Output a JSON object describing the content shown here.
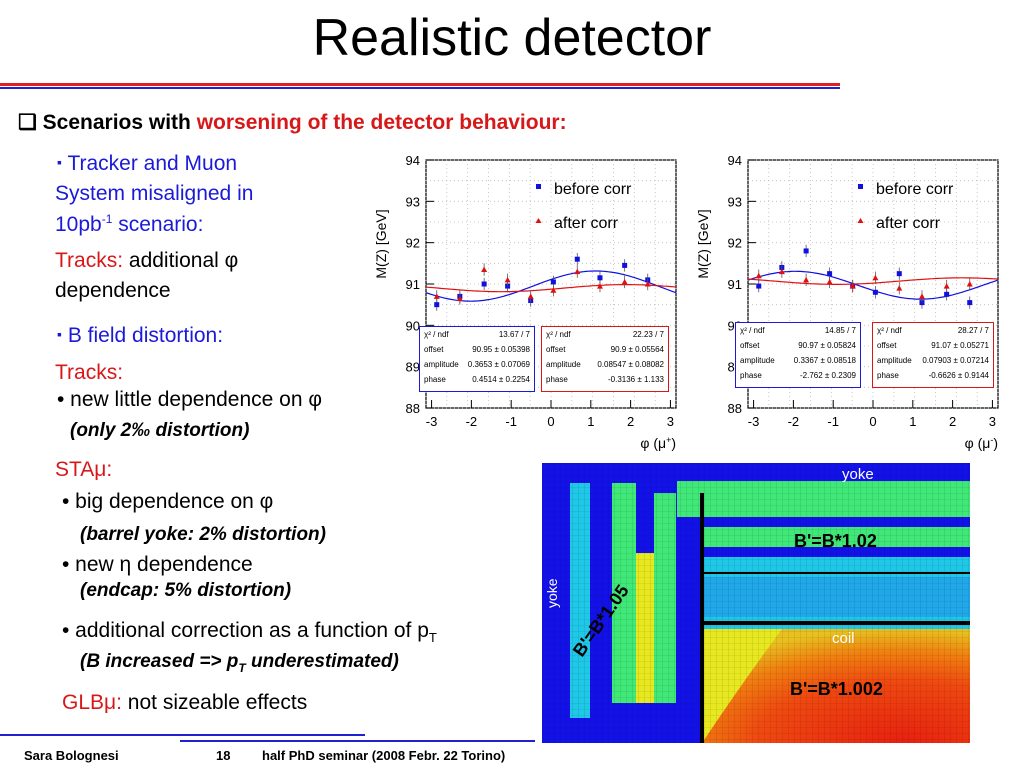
{
  "title": "Realistic detector",
  "heading": {
    "bullet": "❑",
    "prefix": "Scenarios with ",
    "highlight": "worsening of the detector behaviour:"
  },
  "tracker": {
    "bullet": "▪",
    "line1": "Tracker and Muon",
    "line2": "System misaligned in",
    "line3a": "10pb",
    "line3sup": "-1",
    "line3b": " scenario:",
    "tracks_label": "Tracks:",
    "tracks_rest": " additional φ",
    "tracks_line2": "dependence"
  },
  "bfield": {
    "bullet": "▪",
    "label": "B field distortion:",
    "tracks_label": "Tracks:",
    "item1": "• new little dependence on φ",
    "item1_note": "(only 2‰ distortion)",
    "sta_label": "STAμ:",
    "item2": "• big dependence on φ",
    "item2_note": "(barrel yoke: 2% distortion)",
    "item3": "• new η dependence",
    "item3_note": "(endcap: 5% distortion)",
    "item4a": "• additional correction as a function of p",
    "item4sub": "T",
    "item4_note_a": "(B increased => p",
    "item4_note_sub": "T",
    "item4_note_b": " underestimated)",
    "glb_label": "GLBμ:",
    "glb_rest": " not sizeable effects"
  },
  "footer": {
    "author": "Sara Bolognesi",
    "page": "18",
    "event": "half PhD seminar (2008 Febr. 22 Torino)"
  },
  "colors": {
    "blue_text": "#1a1ad8",
    "red_text": "#d81818",
    "rule_red": "#e02020",
    "rule_blue": "#2020d0",
    "series_before": "#1010e0",
    "series_after": "#e01010"
  },
  "chart_data": [
    {
      "type": "scatter",
      "ylabel": "M(Z)  [GeV]",
      "xlabel": "φ (μ+)",
      "xlabel_main": "φ (μ",
      "xlabel_sup": "+",
      "xlabel_end": ")",
      "xlim": [
        -3.14,
        3.14
      ],
      "ylim": [
        88,
        94
      ],
      "x_ticks": [
        "-3",
        "-2",
        "-1",
        "0",
        "1",
        "2",
        "3"
      ],
      "y_ticks": [
        "94",
        "93",
        "92",
        "91",
        "90",
        "89",
        "88"
      ],
      "legend_position": "top-right",
      "grid": true,
      "series": [
        {
          "name": "before corr",
          "x": [
            -2.87,
            -2.29,
            -1.68,
            -1.09,
            -0.51,
            0.06,
            0.66,
            1.23,
            1.85,
            2.43
          ],
          "y": [
            90.5,
            90.7,
            91.0,
            90.95,
            90.6,
            91.05,
            91.6,
            91.15,
            91.45,
            91.1
          ],
          "fit": {
            "chi2_ndf": "13.67 / 7",
            "offset": "90.95 ± 0.05398",
            "amplitude": "0.3653 ± 0.07069",
            "phase": "0.4514 ± 0.2254"
          }
        },
        {
          "name": "after corr",
          "x": [
            -2.87,
            -2.29,
            -1.68,
            -1.09,
            -0.51,
            0.06,
            0.66,
            1.23,
            1.85,
            2.43
          ],
          "y": [
            90.7,
            90.65,
            91.35,
            91.1,
            90.7,
            90.85,
            91.3,
            90.95,
            91.05,
            91.0
          ],
          "fit": {
            "chi2_ndf": "22.23 / 7",
            "offset": "90.9 ± 0.05564",
            "amplitude": "0.08547 ± 0.08082",
            "phase": "-0.3136 ± 1.133"
          }
        }
      ]
    },
    {
      "type": "scatter",
      "ylabel": "M(Z)  [GeV]",
      "xlabel": "φ (μ-)",
      "xlabel_main": "φ (μ",
      "xlabel_sup": "-",
      "xlabel_end": ")",
      "xlim": [
        -3.14,
        3.14
      ],
      "ylim": [
        88,
        94
      ],
      "x_ticks": [
        "-3",
        "-2",
        "-1",
        "0",
        "1",
        "2",
        "3"
      ],
      "y_ticks": [
        "94",
        "93",
        "92",
        "91",
        "90",
        "89",
        "88"
      ],
      "legend_position": "top-right",
      "grid": true,
      "series": [
        {
          "name": "before corr",
          "x": [
            -2.87,
            -2.29,
            -1.68,
            -1.09,
            -0.51,
            0.06,
            0.66,
            1.23,
            1.85,
            2.43
          ],
          "y": [
            90.95,
            91.4,
            91.8,
            91.25,
            90.95,
            90.8,
            91.25,
            90.55,
            90.75,
            90.55
          ],
          "fit": {
            "chi2_ndf": "14.85 / 7",
            "offset": "90.97 ± 0.05824",
            "amplitude": "0.3367 ± 0.08518",
            "phase": "-2.762 ± 0.2309"
          }
        },
        {
          "name": "after corr",
          "x": [
            -2.87,
            -2.29,
            -1.68,
            -1.09,
            -0.51,
            0.06,
            0.66,
            1.23,
            1.85,
            2.43
          ],
          "y": [
            91.2,
            91.3,
            91.1,
            91.05,
            90.95,
            91.15,
            90.9,
            90.7,
            90.95,
            91.0
          ],
          "fit": {
            "chi2_ndf": "28.27 / 7",
            "offset": "91.07 ± 0.05271",
            "amplitude": "0.07903 ± 0.07214",
            "phase": "-0.6626 ± 0.9144"
          }
        }
      ]
    }
  ],
  "field_map": {
    "labels": {
      "yoke_top": "yoke",
      "yoke_left": "yoke",
      "coil": "coil",
      "ratio_barrel": "B'=B*1.02",
      "ratio_endcap": "B'=B*1.05",
      "ratio_inner": "B'=B*1.002"
    },
    "colors": {
      "outer_blue": "#1212e8",
      "cyan": "#20c8e8",
      "green": "#40e878",
      "yellow": "#e8e820",
      "orange": "#f08010",
      "red": "#e82010"
    }
  }
}
